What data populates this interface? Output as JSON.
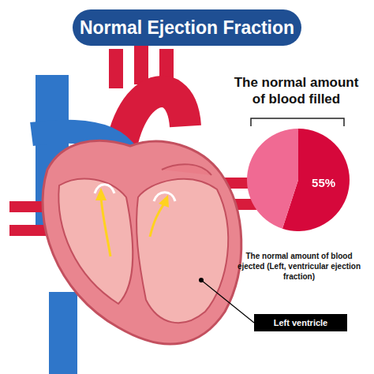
{
  "header": {
    "title": "Normal Ejection Fraction"
  },
  "chart_data": {
    "type": "pie",
    "title": "The normal amount of blood filled",
    "values": [
      55,
      45
    ],
    "colors": [
      "#d6083b",
      "#f06a93"
    ],
    "data_labels": true,
    "value_labels": [
      "55%",
      null
    ],
    "annotation": "The normal amount of blood ejected (Left, ventricular ejection fraction)"
  },
  "diagram": {
    "label": "Left ventricle"
  }
}
